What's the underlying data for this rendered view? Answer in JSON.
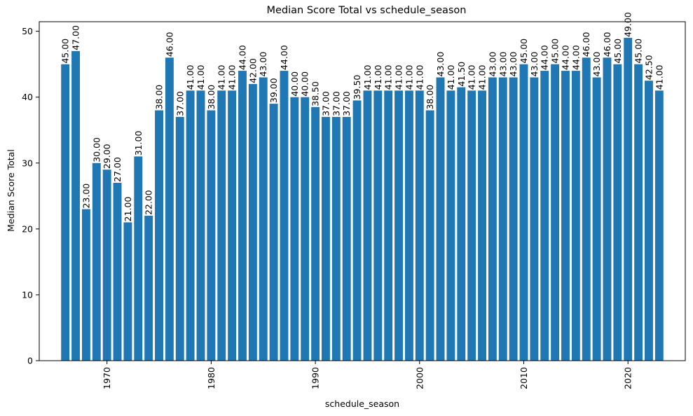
{
  "chart_data": {
    "type": "bar",
    "title": "Median Score Total vs schedule_season",
    "xlabel": "schedule_season",
    "ylabel": "Median Score Total",
    "bar_color": "#1f77b4",
    "xlim": [
      1963.5,
      2025.5
    ],
    "ylim": [
      0,
      51.45
    ],
    "x_ticks": [
      1970,
      1980,
      1990,
      2000,
      2010,
      2020
    ],
    "y_ticks": [
      0,
      10,
      20,
      30,
      40,
      50
    ],
    "grid": false,
    "legend": "none",
    "x": [
      1966,
      1967,
      1968,
      1969,
      1970,
      1971,
      1972,
      1973,
      1974,
      1975,
      1976,
      1977,
      1978,
      1979,
      1980,
      1981,
      1982,
      1983,
      1984,
      1985,
      1986,
      1987,
      1988,
      1989,
      1990,
      1991,
      1992,
      1993,
      1994,
      1995,
      1996,
      1997,
      1998,
      1999,
      2000,
      2001,
      2002,
      2003,
      2004,
      2005,
      2006,
      2007,
      2008,
      2009,
      2010,
      2011,
      2012,
      2013,
      2014,
      2015,
      2016,
      2017,
      2018,
      2019,
      2020,
      2021,
      2022,
      2023
    ],
    "values": [
      45.0,
      47.0,
      23.0,
      30.0,
      29.0,
      27.0,
      21.0,
      31.0,
      22.0,
      38.0,
      46.0,
      37.0,
      41.0,
      41.0,
      38.0,
      41.0,
      41.0,
      44.0,
      42.0,
      43.0,
      39.0,
      44.0,
      40.0,
      40.0,
      38.5,
      37.0,
      37.0,
      37.0,
      39.5,
      41.0,
      41.0,
      41.0,
      41.0,
      41.0,
      41.0,
      38.0,
      43.0,
      41.0,
      41.5,
      41.0,
      41.0,
      43.0,
      43.0,
      43.0,
      45.0,
      43.0,
      44.0,
      45.0,
      44.0,
      44.0,
      46.0,
      43.0,
      46.0,
      45.0,
      49.0,
      45.0,
      42.5,
      41.0
    ],
    "labels": [
      "45.00",
      "47.00",
      "23.00",
      "30.00",
      "29.00",
      "27.00",
      "21.00",
      "31.00",
      "22.00",
      "38.00",
      "46.00",
      "37.00",
      "41.00",
      "41.00",
      "38.00",
      "41.00",
      "41.00",
      "44.00",
      "42.00",
      "43.00",
      "39.00",
      "44.00",
      "40.00",
      "40.00",
      "38.50",
      "37.00",
      "37.00",
      "37.00",
      "39.50",
      "41.00",
      "41.00",
      "41.00",
      "41.00",
      "41.00",
      "41.00",
      "38.00",
      "43.00",
      "41.00",
      "41.50",
      "41.00",
      "41.00",
      "43.00",
      "43.00",
      "43.00",
      "45.00",
      "43.00",
      "44.00",
      "45.00",
      "44.00",
      "44.00",
      "46.00",
      "43.00",
      "46.00",
      "45.00",
      "49.00",
      "45.00",
      "42.50",
      "41.00"
    ]
  }
}
